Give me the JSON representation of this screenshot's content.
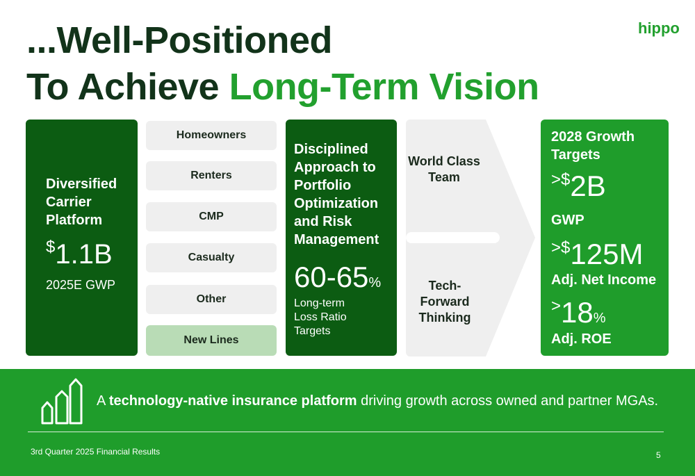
{
  "logo": "hippo",
  "title": {
    "line1": "...Well-Positioned",
    "line2_prefix": "To Achieve",
    "line2_highlight": "Long-Term Vision"
  },
  "platform": {
    "heading": "Diversified Carrier Platform",
    "currency": "$",
    "amount": "1.1B",
    "caption": "2025E GWP"
  },
  "lines": [
    "Homeowners",
    "Renters",
    "CMP",
    "Casualty",
    "Other",
    "New Lines"
  ],
  "discipline": {
    "heading": "Disciplined Approach to Portfolio Optimization and Risk Management",
    "range": "60-65",
    "unit": "%",
    "caption": "Long-term Loss Ratio Targets"
  },
  "strengths": [
    "World Class Team",
    "Tech-Forward Thinking"
  ],
  "targets": {
    "heading": "2028 Growth Targets",
    "items": [
      {
        "prefix": ">$",
        "value": "2B",
        "label": "GWP"
      },
      {
        "prefix": ">$",
        "value": "125M",
        "label": "Adj. Net Income"
      },
      {
        "prefix": ">",
        "value": "18",
        "suffix": "%",
        "label": "Adj. ROE"
      }
    ]
  },
  "tagline": {
    "lead": "A",
    "emphasis": "technology-native insurance platform",
    "rest": "driving growth across owned and partner MGAs."
  },
  "footer": {
    "source": "3rd Quarter 2025 Financial Results",
    "page": 5
  }
}
